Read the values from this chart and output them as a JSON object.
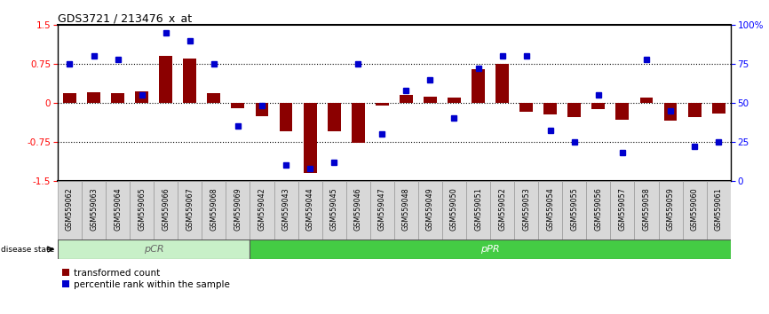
{
  "title": "GDS3721 / 213476_x_at",
  "samples": [
    "GSM559062",
    "GSM559063",
    "GSM559064",
    "GSM559065",
    "GSM559066",
    "GSM559067",
    "GSM559068",
    "GSM559069",
    "GSM559042",
    "GSM559043",
    "GSM559044",
    "GSM559045",
    "GSM559046",
    "GSM559047",
    "GSM559048",
    "GSM559049",
    "GSM559050",
    "GSM559051",
    "GSM559052",
    "GSM559053",
    "GSM559054",
    "GSM559055",
    "GSM559056",
    "GSM559057",
    "GSM559058",
    "GSM559059",
    "GSM559060",
    "GSM559061"
  ],
  "red_values": [
    0.18,
    0.2,
    0.18,
    0.22,
    0.9,
    0.85,
    0.18,
    -0.1,
    -0.25,
    -0.55,
    -1.35,
    -0.55,
    -0.78,
    -0.05,
    0.15,
    0.12,
    0.1,
    0.65,
    0.75,
    -0.18,
    -0.22,
    -0.28,
    -0.12,
    -0.32,
    0.1,
    -0.35,
    -0.28,
    -0.2
  ],
  "blue_values": [
    75,
    80,
    78,
    55,
    95,
    90,
    75,
    35,
    48,
    10,
    8,
    12,
    75,
    30,
    58,
    65,
    40,
    72,
    80,
    80,
    32,
    25,
    55,
    18,
    78,
    45,
    22,
    25
  ],
  "pCR_count": 8,
  "pCR_color": "#c8f0c8",
  "pPR_color": "#44cc44",
  "bar_color": "#8B0000",
  "dot_color": "#0000CD",
  "ylim_left": [
    -1.5,
    1.5
  ],
  "ylim_right": [
    0,
    100
  ],
  "yticks_left": [
    -1.5,
    -0.75,
    0.0,
    0.75,
    1.5
  ],
  "yticks_right": [
    0,
    25,
    50,
    75,
    100
  ],
  "ytick_labels_right": [
    "0",
    "25",
    "50",
    "75",
    "100%"
  ],
  "ytick_labels_left": [
    "-1.5",
    "-0.75",
    "0",
    "0.75",
    "1.5"
  ],
  "hlines": [
    -0.75,
    0.0,
    0.75
  ],
  "background_color": "#ffffff",
  "legend_red": "transformed count",
  "legend_blue": "percentile rank within the sample",
  "disease_state_label": "disease state",
  "pCR_label": "pCR",
  "pPR_label": "pPR",
  "tick_bg": "#d8d8d8"
}
